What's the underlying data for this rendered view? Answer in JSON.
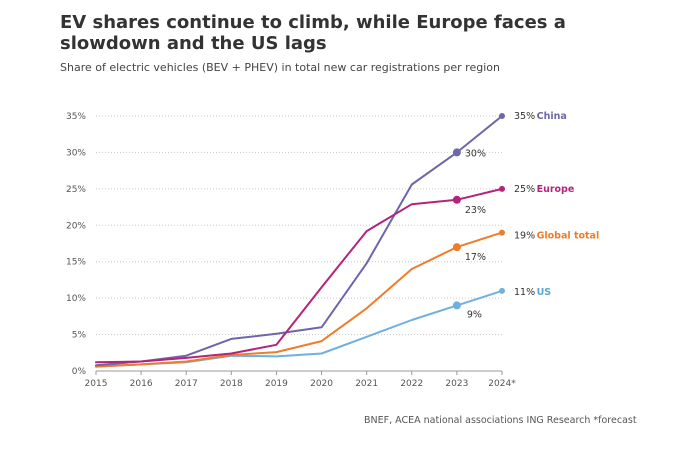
{
  "chart_data": {
    "type": "line",
    "title": "EV shares continue to climb, while Europe faces a slowdown and the US lags",
    "subtitle": "Share of electric vehicles (BEV + PHEV) in total new car registrations per region",
    "source": "BNEF, ACEA national associations ING Research *forecast",
    "categories": [
      "2015",
      "2016",
      "2017",
      "2018",
      "2019",
      "2020",
      "2021",
      "2022",
      "2023",
      "2024*"
    ],
    "ylim": [
      0,
      35
    ],
    "yticks": [
      0,
      5,
      10,
      15,
      20,
      25,
      30,
      35
    ],
    "ytick_labels": [
      "0%",
      "5%",
      "10%",
      "15%",
      "20%",
      "25%",
      "30%",
      "35%"
    ],
    "series": [
      {
        "name": "China",
        "color": "#6e66aa",
        "values": [
          0.8,
          1.3,
          2.1,
          4.4,
          5.1,
          6.0,
          14.8,
          25.6,
          30.0,
          35.0
        ],
        "point_label": "30%",
        "end_label": "35%",
        "name_color": "#6e66aa"
      },
      {
        "name": "Europe",
        "color": "#b3247a",
        "values": [
          1.2,
          1.3,
          1.8,
          2.4,
          3.6,
          11.5,
          19.2,
          22.9,
          23.5,
          25.0
        ],
        "point_label": "23%",
        "end_label": "25%",
        "name_color": "#b3247a"
      },
      {
        "name": "Global total",
        "color": "#f07c2a",
        "values": [
          0.6,
          0.9,
          1.3,
          2.2,
          2.6,
          4.1,
          8.6,
          14.0,
          17.0,
          19.0
        ],
        "point_label": "17%",
        "end_label": "19%",
        "name_color": "#f07c2a"
      },
      {
        "name": "US",
        "color": "#6fb0dc",
        "values": [
          0.6,
          0.9,
          1.2,
          2.1,
          2.0,
          2.4,
          4.7,
          7.0,
          9.0,
          11.0
        ],
        "point_label": "9%",
        "end_label": "11%",
        "name_color": "#5aa6d6"
      }
    ]
  }
}
